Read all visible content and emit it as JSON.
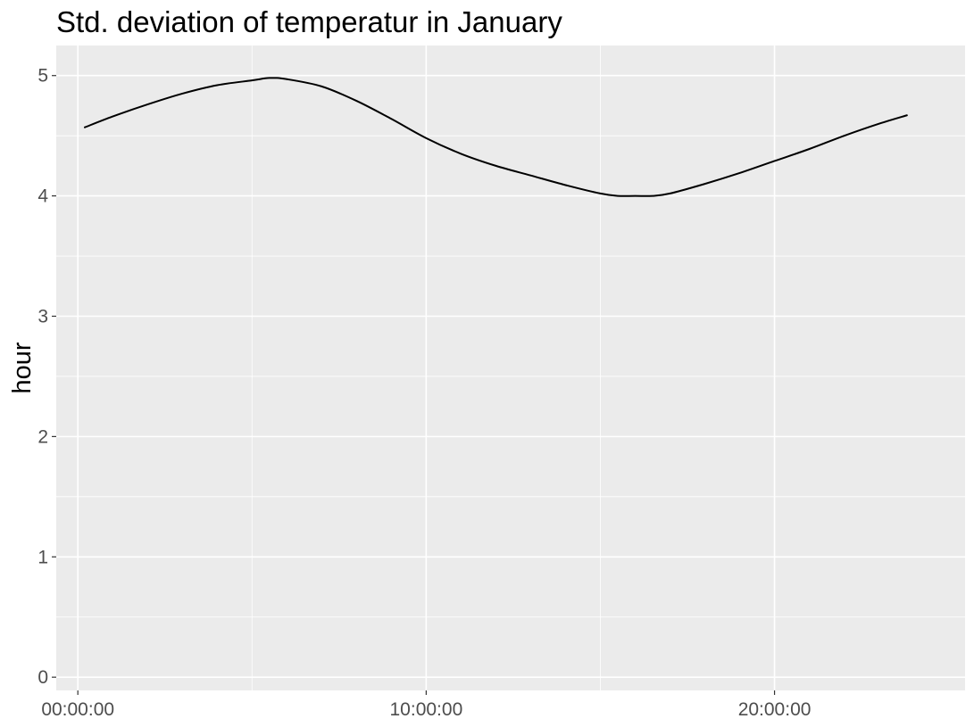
{
  "chart_data": {
    "type": "line",
    "title": "Std. deviation of temperatur in January",
    "xlabel": "",
    "ylabel": "hour",
    "x_unit": "hours since 00:00:00",
    "xlim": [
      -0.62,
      25.47
    ],
    "ylim": [
      -0.11,
      5.25
    ],
    "x_major_ticks": [
      0,
      10,
      20
    ],
    "x_tick_labels": [
      "00:00:00",
      "10:00:00",
      "20:00:00"
    ],
    "y_major_ticks": [
      0,
      1,
      2,
      3,
      4,
      5
    ],
    "y_tick_labels": [
      "0",
      "1",
      "2",
      "3",
      "4",
      "5"
    ],
    "grid": true,
    "legend": "none",
    "colors": {
      "panel_background": "#ebebeb",
      "grid_line": "#ffffff",
      "line": "#000000",
      "tick_text": "#4d4d4d",
      "title_text": "#000000"
    },
    "series": [
      {
        "x": [
          0.2,
          1.0,
          2.0,
          3.0,
          4.0,
          5.0,
          5.5,
          6.0,
          7.0,
          8.0,
          9.0,
          10.0,
          11.0,
          12.0,
          13.0,
          14.0,
          15.0,
          15.5,
          16.0,
          16.5,
          17.0,
          18.0,
          19.0,
          20.0,
          21.0,
          22.0,
          23.0,
          23.8
        ],
        "y": [
          4.57,
          4.66,
          4.76,
          4.85,
          4.92,
          4.96,
          4.98,
          4.97,
          4.91,
          4.79,
          4.64,
          4.48,
          4.35,
          4.25,
          4.17,
          4.09,
          4.02,
          4.0,
          4.0,
          4.0,
          4.02,
          4.1,
          4.19,
          4.29,
          4.39,
          4.5,
          4.6,
          4.67
        ]
      }
    ]
  }
}
